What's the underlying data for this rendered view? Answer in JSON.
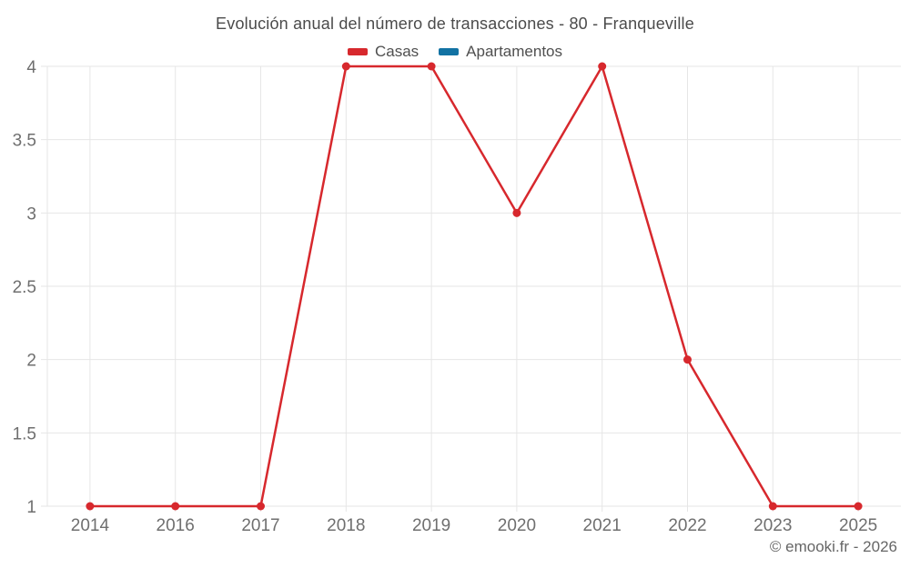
{
  "chart_data": {
    "type": "line",
    "title": "Evolución anual del número de transacciones - 80 - Franqueville",
    "categories": [
      "2014",
      "2016",
      "2017",
      "2018",
      "2019",
      "2020",
      "2021",
      "2022",
      "2023",
      "2025"
    ],
    "series": [
      {
        "name": "Casas",
        "color": "#d7282d",
        "values": [
          1,
          1,
          1,
          4,
          4,
          3,
          4,
          2,
          1,
          1
        ]
      },
      {
        "name": "Apartamentos",
        "color": "#1272a3",
        "values": []
      }
    ],
    "yticks": [
      1,
      1.5,
      2,
      2.5,
      3,
      3.5,
      4
    ],
    "ylim": [
      1,
      4
    ],
    "grid": true,
    "legend_position": "top",
    "footer": "© emooki.fr - 2026"
  }
}
